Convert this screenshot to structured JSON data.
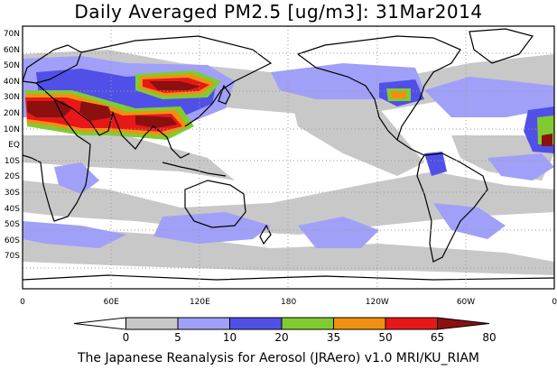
{
  "title": "Daily Averaged PM2.5 [ug/m3]: 31Mar2014",
  "footer": "The Japanese Reanalysis for Aerosol (JRAero) v1.0 MRI/KU_RIAM",
  "lat_labels": [
    "70N",
    "60N",
    "50N",
    "40N",
    "30N",
    "20N",
    "10N",
    "EQ",
    "10S",
    "20S",
    "30S",
    "40S",
    "50S",
    "60S",
    "70S"
  ],
  "lon_labels": [
    "0",
    "60E",
    "120E",
    "180",
    "120W",
    "60W",
    "0"
  ],
  "colorbar": {
    "ticks": [
      "0",
      "5",
      "10",
      "20",
      "35",
      "50",
      "65",
      "80"
    ],
    "colors": [
      "#ffffff",
      "#c8c8c8",
      "#a0a0f8",
      "#5050e8",
      "#80cc30",
      "#f09010",
      "#e81818",
      "#8b1010"
    ]
  }
}
